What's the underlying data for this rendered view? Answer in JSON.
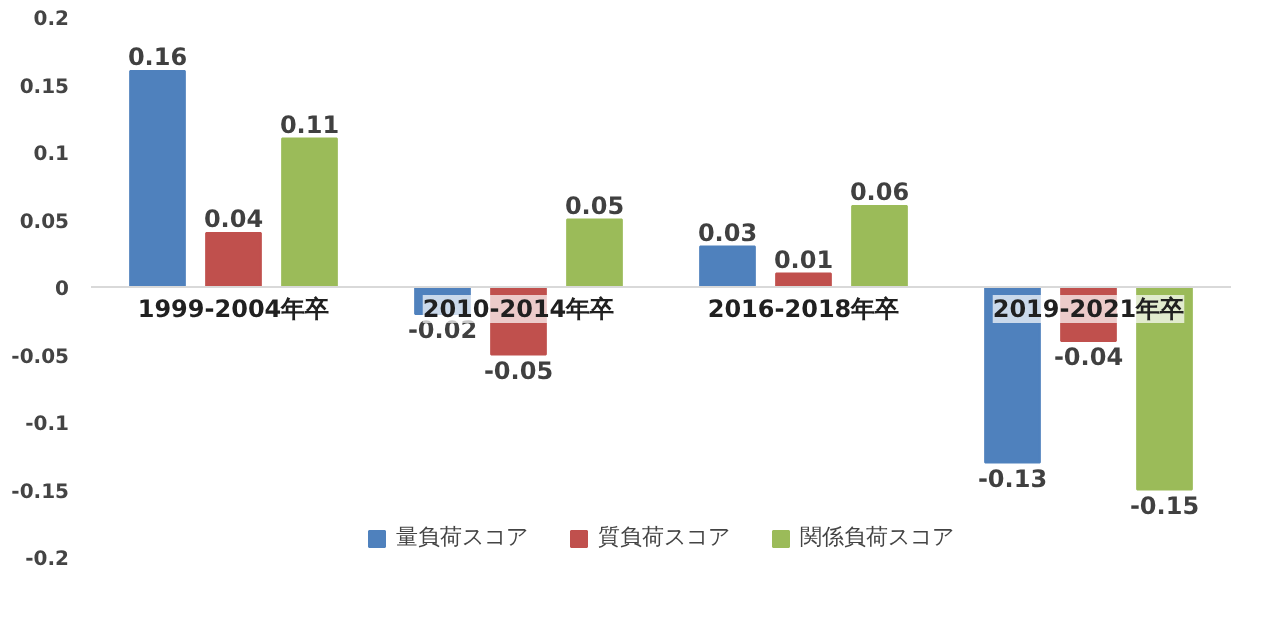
{
  "chart_data": {
    "type": "bar",
    "categories": [
      "1999-2004年卒",
      "2010-2014年卒",
      "2016-2018年卒",
      "2019-2021年卒"
    ],
    "series": [
      {
        "name": "量負荷スコア",
        "color": "#4f81bd",
        "values": [
          0.16,
          -0.02,
          0.03,
          -0.13
        ]
      },
      {
        "name": "質負荷スコア",
        "color": "#c0504d",
        "values": [
          0.04,
          -0.05,
          0.01,
          -0.04
        ]
      },
      {
        "name": "関係負荷スコア",
        "color": "#9bbb59",
        "values": [
          0.11,
          0.05,
          0.06,
          -0.15
        ]
      }
    ],
    "ylim": [
      -0.2,
      0.2
    ],
    "yticks": [
      -0.2,
      -0.15,
      -0.1,
      -0.05,
      0,
      0.05,
      0.1,
      0.15,
      0.2
    ],
    "data_labels": true,
    "legend": "bottom",
    "grid": false
  }
}
